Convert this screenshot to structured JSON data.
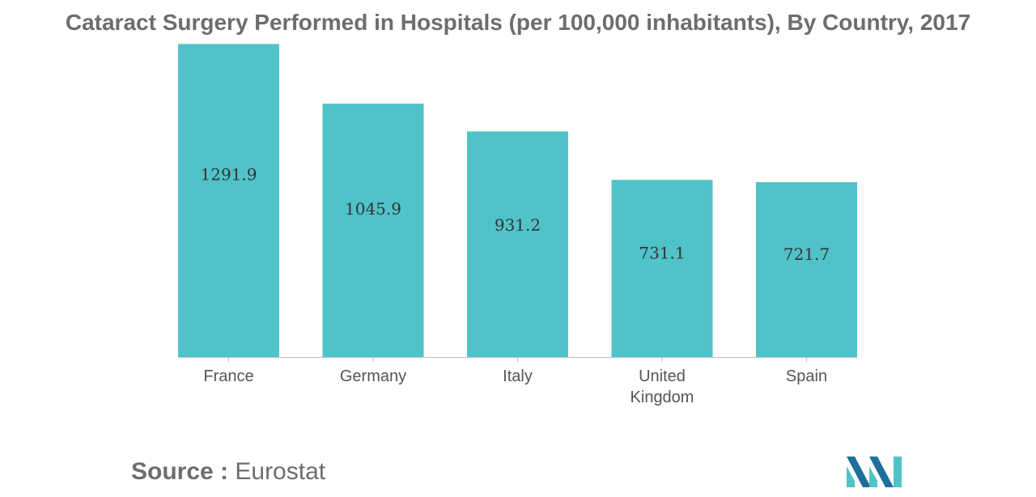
{
  "chart_data": {
    "type": "bar",
    "title": "Cataract Surgery Performed in Hospitals (per 100,000 inhabitants), By Country, 2017",
    "categories": [
      "France",
      "Germany",
      "Italy",
      "United Kingdom",
      "Spain"
    ],
    "category_lines": [
      [
        "France"
      ],
      [
        "Germany"
      ],
      [
        "Italy"
      ],
      [
        "United",
        "Kingdom"
      ],
      [
        "Spain"
      ]
    ],
    "values": [
      1291.9,
      1045.9,
      931.2,
      731.1,
      721.7
    ],
    "value_labels": [
      "1291.9",
      "1045.9",
      "931.2",
      "731.1",
      "721.7"
    ],
    "xlabel": "",
    "ylabel": "",
    "ylim": [
      0,
      1300
    ],
    "grid": false,
    "legend": "none",
    "bar_color": "#4fc3c9",
    "axis_color": "#bdbdbd"
  },
  "source": {
    "label": "Source :",
    "value": "Eurostat"
  },
  "logo": {
    "icon": "mordor-intelligence-logo-icon",
    "color_dark": "#1f6e9b",
    "color_light": "#4fc3c9"
  }
}
